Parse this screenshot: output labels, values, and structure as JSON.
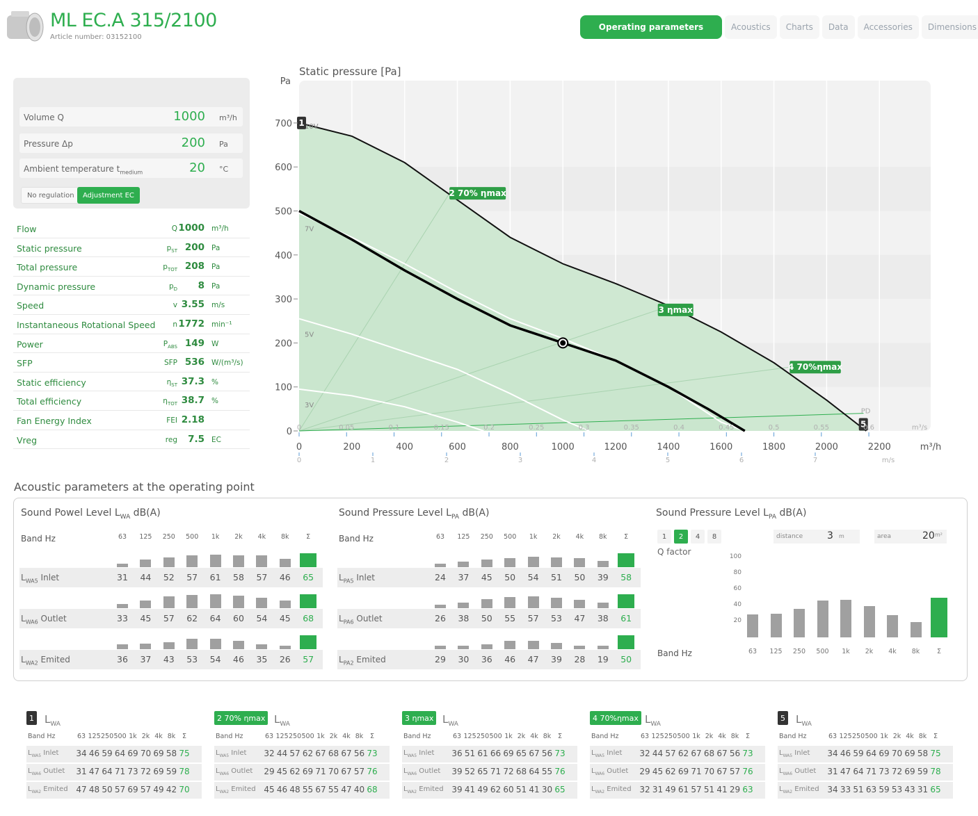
{
  "header": {
    "title": "ML EC.A 315/2100",
    "article": "Article number: 03152100",
    "tabs": [
      "Operating parameters",
      "Acoustics",
      "Charts",
      "Data",
      "Accessories",
      "Dimensions"
    ]
  },
  "inputs": {
    "volume": {
      "label": "Volume Q",
      "value": "1000",
      "unit": "m³/h"
    },
    "pressure": {
      "label": "Pressure Δp",
      "value": "200",
      "unit": "Pa"
    },
    "ambient": {
      "label": "Ambient temperature t",
      "label_sub": "medium",
      "value": "20",
      "unit": "°C"
    },
    "btn_no_regulation": "No regulation",
    "btn_adjustment": "Adjustment EC"
  },
  "params": [
    {
      "name": "Flow",
      "sym": "Q",
      "sub": "",
      "value": "1000",
      "unit": "m³/h"
    },
    {
      "name": "Static pressure",
      "sym": "p",
      "sub": "ST",
      "value": "200",
      "unit": "Pa"
    },
    {
      "name": "Total pressure",
      "sym": "p",
      "sub": "TOT",
      "value": "208",
      "unit": "Pa"
    },
    {
      "name": "Dynamic pressure",
      "sym": "p",
      "sub": "D",
      "value": "8",
      "unit": "Pa"
    },
    {
      "name": "Speed",
      "sym": "v",
      "sub": "",
      "value": "3.55",
      "unit": "m/s"
    },
    {
      "name": "Instantaneous Rotational Speed",
      "sym": "n",
      "sub": "",
      "value": "1772",
      "unit": "min⁻¹"
    },
    {
      "name": "Power",
      "sym": "P",
      "sub": "ABS",
      "value": "149",
      "unit": "W"
    },
    {
      "name": "SFP",
      "sym": "SFP",
      "sub": "",
      "value": "536",
      "unit": "W/(m³/s)"
    },
    {
      "name": "Static efficiency",
      "sym": "η",
      "sub": "ST",
      "value": "37.3",
      "unit": "%"
    },
    {
      "name": "Total efficiency",
      "sym": "η",
      "sub": "TOT",
      "value": "38.7",
      "unit": "%"
    },
    {
      "name": "Fan Energy Index",
      "sym": "FEI",
      "sub": "",
      "value": "2.18",
      "unit": ""
    },
    {
      "name": "Vreg",
      "sym": "reg",
      "sub": "",
      "value": "7.5",
      "unit": "EC"
    }
  ],
  "chart_data": {
    "type": "line",
    "title": "Static pressure [Pa]",
    "ylabel": "Pa",
    "xlabel": "m³/h",
    "xlim": [
      0,
      2400
    ],
    "ylim": [
      0,
      750
    ],
    "x_ticks": [
      0,
      200,
      400,
      600,
      800,
      1000,
      1200,
      1400,
      1600,
      1800,
      2000,
      2200
    ],
    "y_ticks": [
      0,
      100,
      200,
      300,
      400,
      500,
      600,
      700
    ],
    "secondary_x_top": {
      "unit": "m³/s",
      "ticks": [
        "0",
        "0.05",
        "0.1",
        "0.15",
        "0.2",
        "0.25",
        "0.3",
        "0.35",
        "0.4",
        "0.45",
        "0.5",
        "0.55",
        "0.6"
      ]
    },
    "secondary_x_bottom": {
      "unit": "m/s",
      "ticks": [
        "0",
        "1",
        "2",
        "3",
        "4",
        "5",
        "6",
        "7"
      ]
    },
    "series": [
      {
        "name": "10V",
        "x": [
          0,
          200,
          400,
          600,
          800,
          1000,
          1200,
          1400,
          1600,
          1800,
          2000,
          2150
        ],
        "y": [
          700,
          670,
          610,
          525,
          440,
          380,
          335,
          285,
          225,
          155,
          70,
          0
        ]
      },
      {
        "name": "7V",
        "x": [
          0,
          200,
          400,
          600,
          800,
          1000,
          1200,
          1400,
          1600,
          1690
        ],
        "y": [
          495,
          440,
          380,
          315,
          255,
          210,
          160,
          100,
          20,
          0
        ]
      },
      {
        "name": "5V",
        "x": [
          0,
          200,
          400,
          600,
          800,
          1000,
          1100
        ],
        "y": [
          255,
          220,
          180,
          140,
          85,
          25,
          0
        ]
      },
      {
        "name": "3V",
        "x": [
          0,
          200,
          400,
          600,
          700
        ],
        "y": [
          95,
          80,
          55,
          20,
          0
        ]
      }
    ],
    "operating_point": {
      "x": 1000,
      "y": 200
    },
    "markers": [
      {
        "label": "1",
        "x": 0,
        "y": 700
      },
      {
        "label": "2 70% ηmax",
        "x": 570,
        "y": 540
      },
      {
        "label": "3 ηmax",
        "x": 1360,
        "y": 275
      },
      {
        "label": "4 70%ηmax",
        "x": 1860,
        "y": 145
      },
      {
        "label": "5",
        "x": 2130,
        "y": 15
      }
    ],
    "pd_label": "PD"
  },
  "acoustic": {
    "title": "Acoustic parameters at the operating point",
    "sub1": "Sound Powel Level L",
    "sub1_sub": "WA",
    "sub2": "Sound Pressure Level L",
    "sub2_sub": "PA",
    "sub3": "Sound Pressure Level L",
    "sub3_sub": "PA",
    "unit": "dB(A)",
    "band_label": "Band Hz",
    "bands": [
      "63",
      "125",
      "250",
      "500",
      "1k",
      "2k",
      "4k",
      "8k",
      "Σ"
    ],
    "power": [
      {
        "label": "L",
        "sub": "WA5",
        "name": "Inlet",
        "values": [
          "31",
          "44",
          "52",
          "57",
          "61",
          "58",
          "57",
          "46",
          "65"
        ]
      },
      {
        "label": "L",
        "sub": "WA6",
        "name": "Outlet",
        "values": [
          "33",
          "45",
          "57",
          "62",
          "64",
          "60",
          "54",
          "45",
          "68"
        ]
      },
      {
        "label": "L",
        "sub": "WA2",
        "name": "Emited",
        "values": [
          "36",
          "37",
          "43",
          "53",
          "54",
          "46",
          "35",
          "26",
          "57"
        ]
      }
    ],
    "pressure": [
      {
        "label": "L",
        "sub": "PA5",
        "name": "Inlet",
        "values": [
          "24",
          "37",
          "45",
          "50",
          "54",
          "51",
          "50",
          "39",
          "58"
        ]
      },
      {
        "label": "L",
        "sub": "PA6",
        "name": "Outlet",
        "values": [
          "26",
          "38",
          "50",
          "55",
          "57",
          "53",
          "47",
          "38",
          "61"
        ]
      },
      {
        "label": "L",
        "sub": "PA2",
        "name": "Emited",
        "values": [
          "29",
          "30",
          "36",
          "46",
          "47",
          "39",
          "28",
          "19",
          "50"
        ]
      }
    ],
    "q_factor": {
      "label": "Q factor",
      "options": [
        "1",
        "2",
        "4",
        "8"
      ],
      "selected": "2"
    },
    "distance": {
      "label": "distance",
      "value": "3",
      "unit": "m"
    },
    "area": {
      "label": "area",
      "value": "20",
      "unit": "m²"
    },
    "spl_chart": {
      "yticks": [
        "100",
        "80",
        "60",
        "40",
        "20"
      ],
      "values": [
        29,
        30,
        36,
        46,
        47,
        39,
        28,
        19,
        50
      ]
    }
  },
  "points": [
    {
      "badge": "1",
      "badge_type": "num",
      "values": {
        "inlet": [
          "34",
          "46",
          "59",
          "64",
          "69",
          "70",
          "69",
          "58",
          "75"
        ],
        "outlet": [
          "31",
          "47",
          "64",
          "71",
          "73",
          "72",
          "69",
          "59",
          "78"
        ],
        "emited": [
          "47",
          "48",
          "50",
          "57",
          "69",
          "57",
          "49",
          "42",
          "70"
        ]
      }
    },
    {
      "badge": "2 70% ηmax",
      "badge_type": "green",
      "values": {
        "inlet": [
          "32",
          "44",
          "57",
          "62",
          "67",
          "68",
          "67",
          "56",
          "73"
        ],
        "outlet": [
          "29",
          "45",
          "62",
          "69",
          "71",
          "70",
          "67",
          "57",
          "76"
        ],
        "emited": [
          "45",
          "46",
          "48",
          "55",
          "67",
          "55",
          "47",
          "40",
          "68"
        ]
      }
    },
    {
      "badge": "3 ηmax",
      "badge_type": "green",
      "values": {
        "inlet": [
          "36",
          "51",
          "61",
          "66",
          "69",
          "65",
          "67",
          "56",
          "73"
        ],
        "outlet": [
          "39",
          "52",
          "65",
          "71",
          "72",
          "68",
          "64",
          "55",
          "76"
        ],
        "emited": [
          "39",
          "41",
          "49",
          "62",
          "60",
          "51",
          "41",
          "30",
          "65"
        ]
      }
    },
    {
      "badge": "4 70%ηmax",
      "badge_type": "green",
      "values": {
        "inlet": [
          "32",
          "44",
          "57",
          "62",
          "67",
          "68",
          "67",
          "56",
          "73"
        ],
        "outlet": [
          "29",
          "45",
          "62",
          "69",
          "71",
          "70",
          "67",
          "57",
          "76"
        ],
        "emited": [
          "32",
          "31",
          "49",
          "61",
          "57",
          "51",
          "41",
          "29",
          "63"
        ]
      }
    },
    {
      "badge": "5",
      "badge_type": "num",
      "values": {
        "inlet": [
          "34",
          "46",
          "59",
          "64",
          "69",
          "70",
          "69",
          "58",
          "75"
        ],
        "outlet": [
          "31",
          "47",
          "64",
          "71",
          "73",
          "72",
          "69",
          "59",
          "78"
        ],
        "emited": [
          "34",
          "33",
          "51",
          "63",
          "59",
          "53",
          "43",
          "31",
          "65"
        ]
      }
    }
  ],
  "points_labels": {
    "lwa": "L",
    "lwa_sub": "WA",
    "band": "Band Hz",
    "inlet": "Inlet",
    "outlet": "Outlet",
    "emited": "Emited",
    "inlet_sub": "WA5",
    "outlet_sub": "WA6",
    "emited_sub": "WA2"
  }
}
